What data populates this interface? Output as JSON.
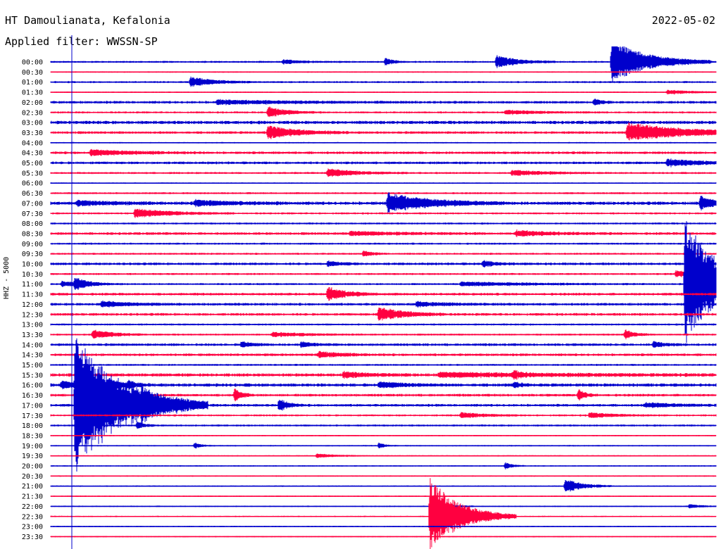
{
  "header": {
    "station": "HT Damoulianata, Kefalonia",
    "filter": "Applied filter: WWSSN-SP",
    "date": "2022-05-02",
    "channel": "HHZ - 5000"
  },
  "chart_data": {
    "type": "line",
    "title": "HT Damoulianata, Kefalonia",
    "subtitle": "Applied filter: WWSSN-SP",
    "ylabel": "HHZ - 5000",
    "row_labels": [
      "00:00",
      "00:30",
      "01:00",
      "01:30",
      "02:00",
      "02:30",
      "03:00",
      "03:30",
      "04:00",
      "04:30",
      "05:00",
      "05:30",
      "06:00",
      "06:30",
      "07:00",
      "07:30",
      "08:00",
      "08:30",
      "09:00",
      "09:30",
      "10:00",
      "10:30",
      "11:00",
      "11:30",
      "12:00",
      "12:30",
      "13:00",
      "13:30",
      "14:00",
      "14:30",
      "15:00",
      "15:30",
      "16:00",
      "16:30",
      "17:00",
      "17:30",
      "18:00",
      "18:30",
      "19:00",
      "19:30",
      "20:00",
      "20:30",
      "21:00",
      "21:30",
      "22:00",
      "22:30",
      "23:00",
      "23:30"
    ],
    "colors": {
      "even": "#0000cc",
      "odd": "#ff0040",
      "text": "#000000"
    },
    "noise": [
      1.5,
      1,
      1.5,
      1,
      2,
      1.5,
      2.5,
      2,
      1,
      2,
      2,
      1.5,
      1,
      1.5,
      2.5,
      1.5,
      1.5,
      2,
      1.5,
      1.5,
      2,
      1.5,
      1.5,
      2,
      2,
      2,
      1.5,
      1.5,
      2,
      2,
      1.5,
      2.5,
      2.5,
      2,
      2,
      1.5,
      1.5,
      1,
      1,
      1,
      1,
      1,
      1,
      1,
      1,
      1,
      1,
      1
    ],
    "events": [
      {
        "row": 0,
        "minute": 10.5,
        "amp": 3,
        "dur": 0.8
      },
      {
        "row": 0,
        "minute": 15.1,
        "amp": 6,
        "dur": 0.3
      },
      {
        "row": 0,
        "minute": 20.1,
        "amp": 9,
        "dur": 0.9
      },
      {
        "row": 0,
        "minute": 25.3,
        "amp": 32,
        "dur": 1.5
      },
      {
        "row": 2,
        "minute": 6.3,
        "amp": 7,
        "dur": 1
      },
      {
        "row": 3,
        "minute": 27.8,
        "amp": 3,
        "dur": 1.2
      },
      {
        "row": 4,
        "minute": 7.5,
        "amp": 3,
        "dur": 3
      },
      {
        "row": 4,
        "minute": 24.5,
        "amp": 5,
        "dur": 0.3
      },
      {
        "row": 5,
        "minute": 9.8,
        "amp": 8,
        "dur": 0.8
      },
      {
        "row": 5,
        "minute": 20.5,
        "amp": 3,
        "dur": 1.5
      },
      {
        "row": 7,
        "minute": 9.8,
        "amp": 10,
        "dur": 1.2
      },
      {
        "row": 7,
        "minute": 26,
        "amp": 14,
        "dur": 2.5
      },
      {
        "row": 9,
        "minute": 1.8,
        "amp": 4,
        "dur": 1.8
      },
      {
        "row": 10,
        "minute": 27.8,
        "amp": 5,
        "dur": 1.5
      },
      {
        "row": 11,
        "minute": 12.5,
        "amp": 6,
        "dur": 1.2
      },
      {
        "row": 11,
        "minute": 20.8,
        "amp": 4,
        "dur": 1.5
      },
      {
        "row": 14,
        "minute": 1.2,
        "amp": 3,
        "dur": 1.5
      },
      {
        "row": 14,
        "minute": 6.5,
        "amp": 4,
        "dur": 1.5
      },
      {
        "row": 14,
        "minute": 15.2,
        "amp": 14,
        "dur": 1.8
      },
      {
        "row": 14,
        "minute": 29.3,
        "amp": 10,
        "dur": 0.6
      },
      {
        "row": 15,
        "minute": 3.8,
        "amp": 7,
        "dur": 1.5
      },
      {
        "row": 17,
        "minute": 13.5,
        "amp": 3,
        "dur": 2
      },
      {
        "row": 17,
        "minute": 21,
        "amp": 4,
        "dur": 1.5
      },
      {
        "row": 19,
        "minute": 14.1,
        "amp": 4,
        "dur": 0.4
      },
      {
        "row": 20,
        "minute": 12.5,
        "amp": 4,
        "dur": 0.5
      },
      {
        "row": 20,
        "minute": 19.5,
        "amp": 4,
        "dur": 0.6
      },
      {
        "row": 21,
        "minute": 28.2,
        "amp": 5,
        "dur": 0.8
      },
      {
        "row": 22,
        "minute": 0.5,
        "amp": 4,
        "dur": 1
      },
      {
        "row": 22,
        "minute": 1.1,
        "amp": 8,
        "dur": 0.5
      },
      {
        "row": 22,
        "minute": 18.5,
        "amp": 3,
        "dur": 3
      },
      {
        "row": 22,
        "minute": 28.6,
        "amp": 95,
        "dur": 1.5
      },
      {
        "row": 23,
        "minute": 12.5,
        "amp": 10,
        "dur": 0.8
      },
      {
        "row": 24,
        "minute": 2.3,
        "amp": 4,
        "dur": 1.2
      },
      {
        "row": 24,
        "minute": 16.5,
        "amp": 3,
        "dur": 1.5
      },
      {
        "row": 25,
        "minute": 14.8,
        "amp": 11,
        "dur": 1
      },
      {
        "row": 27,
        "minute": 1.9,
        "amp": 7,
        "dur": 0.8
      },
      {
        "row": 27,
        "minute": 10,
        "amp": 3,
        "dur": 1.5
      },
      {
        "row": 27,
        "minute": 25.9,
        "amp": 7,
        "dur": 0.4
      },
      {
        "row": 28,
        "minute": 8.6,
        "amp": 4,
        "dur": 0.5
      },
      {
        "row": 28,
        "minute": 11.3,
        "amp": 4,
        "dur": 0.5
      },
      {
        "row": 28,
        "minute": 27.2,
        "amp": 5,
        "dur": 0.4
      },
      {
        "row": 29,
        "minute": 12.1,
        "amp": 4,
        "dur": 1
      },
      {
        "row": 31,
        "minute": 13.2,
        "amp": 4,
        "dur": 1
      },
      {
        "row": 31,
        "minute": 17.5,
        "amp": 3,
        "dur": 5
      },
      {
        "row": 31,
        "minute": 20.9,
        "amp": 5,
        "dur": 0.3
      },
      {
        "row": 32,
        "minute": 0.5,
        "amp": 6,
        "dur": 0.5
      },
      {
        "row": 32,
        "minute": 1.1,
        "amp": 12,
        "dur": 0.8
      },
      {
        "row": 32,
        "minute": 1.9,
        "amp": 7,
        "dur": 0.5
      },
      {
        "row": 32,
        "minute": 2.6,
        "amp": 7,
        "dur": 0.4
      },
      {
        "row": 32,
        "minute": 3.5,
        "amp": 6,
        "dur": 0.4
      },
      {
        "row": 32,
        "minute": 14.8,
        "amp": 4,
        "dur": 1
      },
      {
        "row": 32,
        "minute": 20.9,
        "amp": 4,
        "dur": 0.3
      },
      {
        "row": 33,
        "minute": 8.3,
        "amp": 10,
        "dur": 0.3
      },
      {
        "row": 33,
        "minute": 23.8,
        "amp": 8,
        "dur": 0.3
      },
      {
        "row": 34,
        "minute": 1.1,
        "amp": 100,
        "dur": 2
      },
      {
        "row": 34,
        "minute": 4.1,
        "amp": 10,
        "dur": 0.4
      },
      {
        "row": 34,
        "minute": 10.3,
        "amp": 9,
        "dur": 0.4
      },
      {
        "row": 34,
        "minute": 26.8,
        "amp": 3,
        "dur": 1.5
      },
      {
        "row": 35,
        "minute": 18.5,
        "amp": 4,
        "dur": 1
      },
      {
        "row": 35,
        "minute": 24.3,
        "amp": 4,
        "dur": 1
      },
      {
        "row": 36,
        "minute": 3.9,
        "amp": 6,
        "dur": 0.3
      },
      {
        "row": 38,
        "minute": 6.5,
        "amp": 4,
        "dur": 0.3
      },
      {
        "row": 38,
        "minute": 14.8,
        "amp": 4,
        "dur": 0.3
      },
      {
        "row": 39,
        "minute": 12,
        "amp": 3,
        "dur": 0.8
      },
      {
        "row": 40,
        "minute": 20.5,
        "amp": 5,
        "dur": 0.3
      },
      {
        "row": 42,
        "minute": 23.2,
        "amp": 11,
        "dur": 0.7
      },
      {
        "row": 44,
        "minute": 17.3,
        "amp": 6,
        "dur": 0.6
      },
      {
        "row": 44,
        "minute": 28.8,
        "amp": 3,
        "dur": 0.5
      },
      {
        "row": 45,
        "minute": 17.1,
        "amp": 55,
        "dur": 1.3
      }
    ]
  }
}
